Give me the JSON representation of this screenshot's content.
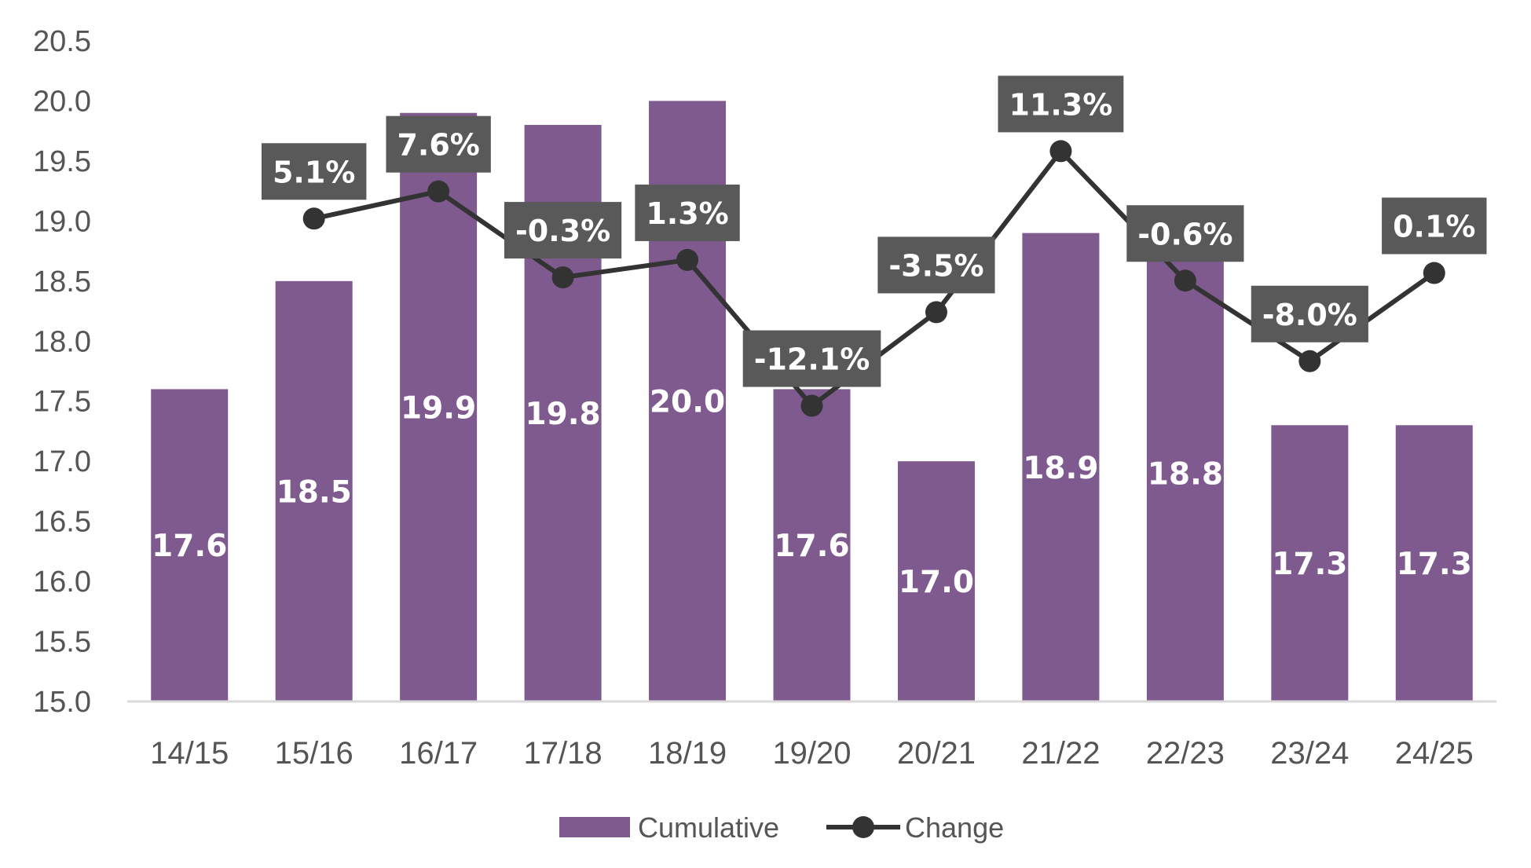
{
  "chart_data": {
    "type": "bar",
    "categories": [
      "14/15",
      "15/16",
      "16/17",
      "17/18",
      "18/19",
      "19/20",
      "20/21",
      "21/22",
      "22/23",
      "23/24",
      "24/25"
    ],
    "series": [
      {
        "name": "Cumulative",
        "type": "bar",
        "color": "#7f5a8e",
        "values": [
          17.6,
          18.5,
          19.9,
          19.8,
          20.0,
          17.6,
          17.0,
          18.9,
          18.8,
          17.3,
          17.3
        ],
        "labels": [
          "17.6",
          "18.5",
          "19.9",
          "19.8",
          "20.0",
          "17.6",
          "17.0",
          "18.9",
          "18.8",
          "17.3",
          "17.3"
        ]
      },
      {
        "name": "Change",
        "type": "line",
        "color": "#333333",
        "values": [
          null,
          5.1,
          7.6,
          -0.3,
          1.3,
          -12.1,
          -3.5,
          11.3,
          -0.6,
          -8.0,
          0.1
        ],
        "labels": [
          null,
          "5.1%",
          "7.6%",
          "-0.3%",
          "1.3%",
          "-12.1%",
          "-3.5%",
          "11.3%",
          "-0.6%",
          "-8.0%",
          "0.1%"
        ]
      }
    ],
    "ylim": [
      15.0,
      20.5
    ],
    "yticks": [
      "15.0",
      "15.5",
      "16.0",
      "16.5",
      "17.0",
      "17.5",
      "18.0",
      "18.5",
      "19.0",
      "19.5",
      "20.0",
      "20.5"
    ],
    "legend": [
      "Cumulative",
      "Change"
    ],
    "legend_position": "bottom",
    "grid": false,
    "title": "",
    "xlabel": "",
    "ylabel": ""
  }
}
